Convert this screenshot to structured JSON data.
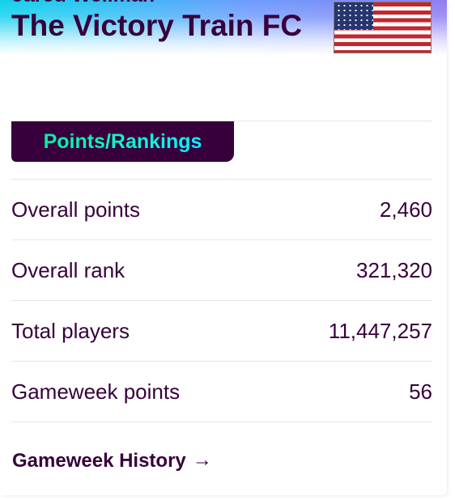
{
  "header": {
    "player_name": "Jared Wellman",
    "team_name": "The Victory Train FC",
    "flag_icon": "united-states-flag"
  },
  "section": {
    "tab_label": "Points/Rankings"
  },
  "stats": [
    {
      "label": "Overall points",
      "value": "2,460"
    },
    {
      "label": "Overall rank",
      "value": "321,320"
    },
    {
      "label": "Total players",
      "value": "11,447,257"
    },
    {
      "label": "Gameweek points",
      "value": "56"
    }
  ],
  "history": {
    "link_label": "Gameweek History",
    "arrow_icon": "→"
  },
  "colors": {
    "primary": "#37003c",
    "accent_gradient_start": "#05f0a5",
    "accent_gradient_end": "#04f5ff",
    "header_gradient_start": "#10d1ee",
    "header_gradient_end": "#8f7df2",
    "divider": "#e6e6e6"
  }
}
